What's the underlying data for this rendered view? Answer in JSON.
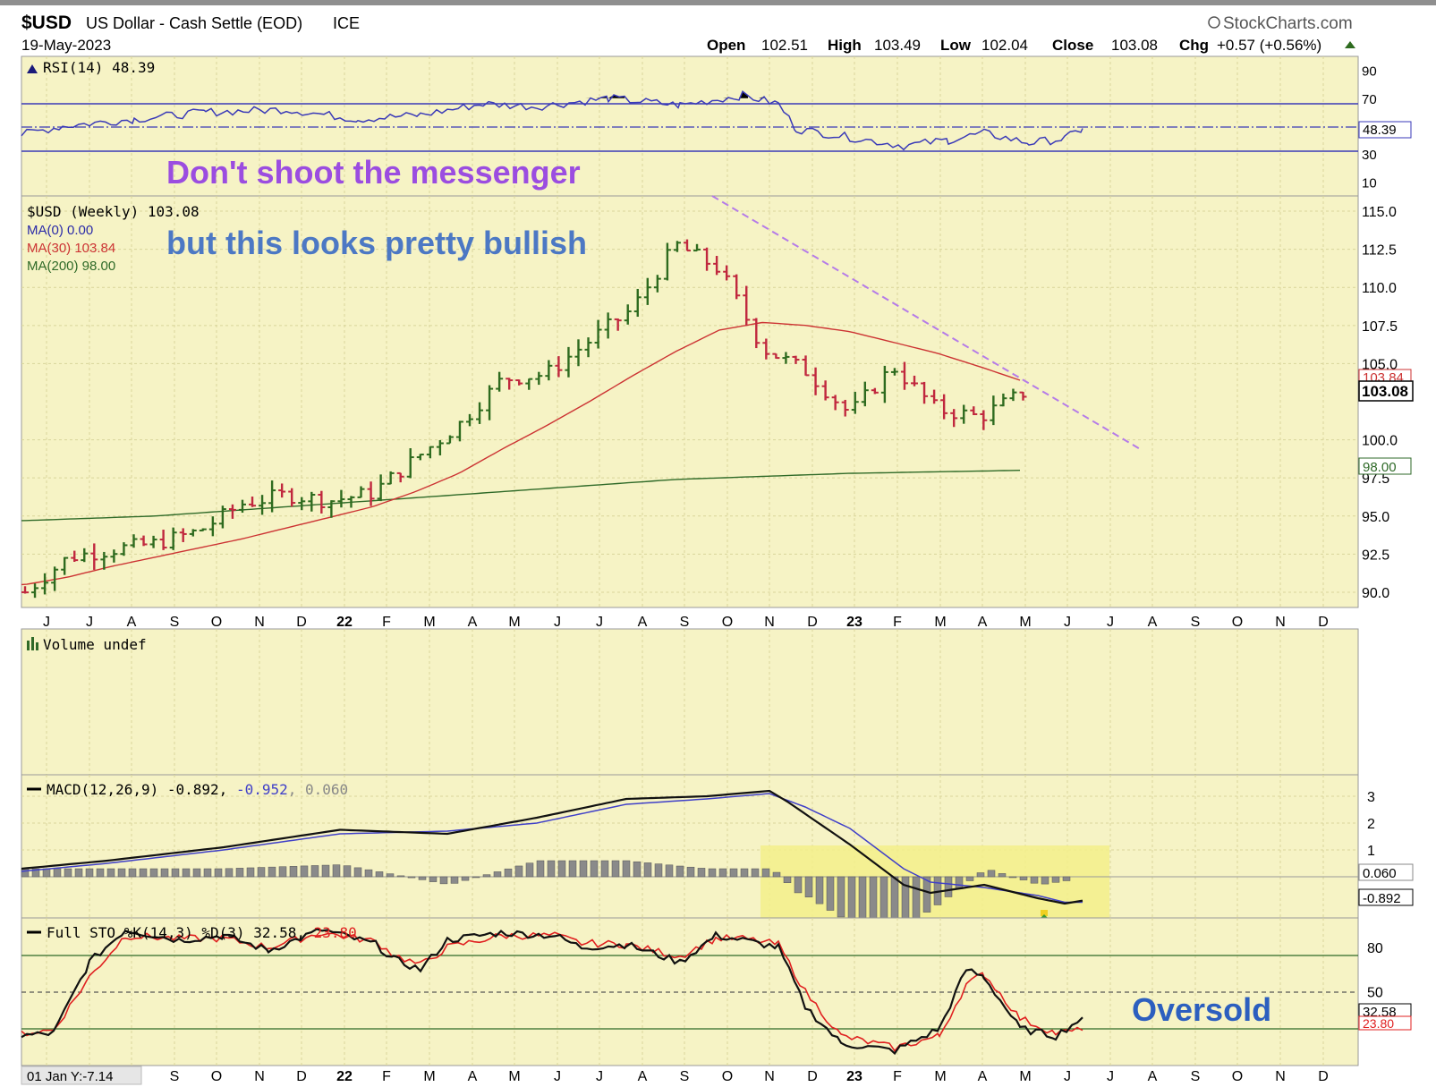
{
  "header": {
    "symbol": "$USD",
    "description": "US Dollar - Cash Settle (EOD)",
    "exchange": "ICE",
    "date": "19-May-2023",
    "brand": "StockCharts.com",
    "open_label": "Open",
    "open": "102.51",
    "high_label": "High",
    "high": "103.49",
    "low_label": "Low",
    "low": "102.04",
    "close_label": "Close",
    "close": "103.08",
    "chg_label": "Chg",
    "chg": "+0.57 (+0.56%)"
  },
  "annotations": {
    "line1": "Don't shoot the messenger",
    "line2": "but this looks pretty bullish",
    "oversold": "Oversold"
  },
  "colors": {
    "panel_bg": "#f6f3c5",
    "grid": "#d9d59a",
    "up_bar": "#2e6b1f",
    "down_bar": "#c0283e",
    "ma30": "#cc3333",
    "ma200": "#2f6a28",
    "rsi_line": "#3a3ab8",
    "macd_line": "#111111",
    "signal_line": "#4040c8",
    "histogram": "#8a8a8a",
    "sto_k": "#111111",
    "sto_d": "#e02020",
    "trendline": "#b57be8",
    "annot_purple": "#9b4de0",
    "annot_blue": "#4c78c4",
    "oversold": "#2c5fbf",
    "highlight": "#f3ef8a",
    "arrow": "#3d9a2f"
  },
  "rsi_panel": {
    "label": "RSI(14) 48.39",
    "value_tag": "48.39",
    "axis_ticks": [
      "90",
      "70",
      "30",
      "10"
    ]
  },
  "price_panel": {
    "label": "$USD (Weekly) 103.08",
    "legend": [
      {
        "text": "MA(0) 0.00",
        "color": "#2a2aa8"
      },
      {
        "text": "MA(30) 103.84",
        "color": "#cc3333"
      },
      {
        "text": "MA(200) 98.00",
        "color": "#2f6a28"
      }
    ],
    "axis_ticks": [
      "115.0",
      "112.5",
      "110.0",
      "107.5",
      "105.0",
      "100.0",
      "97.5",
      "95.0",
      "92.5",
      "90.0"
    ],
    "tag_ma30": "103.84",
    "tag_close": "103.08",
    "tag_ma200": "98.00"
  },
  "x_axis": {
    "labels": [
      "J",
      "J",
      "A",
      "S",
      "O",
      "N",
      "D",
      "22",
      "F",
      "M",
      "A",
      "M",
      "J",
      "J",
      "A",
      "S",
      "O",
      "N",
      "D",
      "23",
      "F",
      "M",
      "A",
      "M",
      "J",
      "J",
      "A",
      "S",
      "O",
      "N",
      "D"
    ],
    "bottom_labels": [
      "S",
      "O",
      "N",
      "D",
      "22",
      "F",
      "M",
      "A",
      "M",
      "J",
      "J",
      "A",
      "S",
      "O",
      "N",
      "D",
      "23",
      "F",
      "M",
      "A",
      "M",
      "J",
      "J",
      "A",
      "S",
      "O",
      "N",
      "D"
    ],
    "scroll_note": "01 Jan Y:-7.14"
  },
  "volume_panel": {
    "label": "Volume undef"
  },
  "macd_panel": {
    "label": "MACD(12,26,9)",
    "macd": "-0.892",
    "signal": "-0.952",
    "hist": "0.060",
    "axis_ticks": [
      "3",
      "2",
      "1"
    ],
    "tag_hist": "0.060",
    "tag_macd": "-0.892"
  },
  "sto_panel": {
    "label": "Full STO %K(14,3) %D(3)",
    "k": "32.58",
    "d": "23.80",
    "axis_ticks": [
      "80",
      "50"
    ],
    "tag_k": "32.58",
    "tag_d": "23.80"
  },
  "chart_data": {
    "type": "line",
    "title": "$USD US Dollar - Cash Settle (EOD) ICE",
    "x_label": "",
    "y_label": "",
    "x": [
      "2021-06",
      "2021-07",
      "2021-08",
      "2021-09",
      "2021-10",
      "2021-11",
      "2021-12",
      "2022-01",
      "2022-02",
      "2022-03",
      "2022-04",
      "2022-05",
      "2022-06",
      "2022-07",
      "2022-08",
      "2022-09",
      "2022-10",
      "2022-11",
      "2022-12",
      "2023-01",
      "2023-02",
      "2023-03",
      "2023-04",
      "2023-05"
    ],
    "ylim": [
      89.0,
      116.0
    ],
    "series": [
      {
        "name": "$USD (Weekly)",
        "values": [
          90.0,
          92.3,
          92.8,
          93.2,
          94.0,
          95.8,
          96.4,
          96.0,
          96.5,
          98.8,
          101.0,
          104.0,
          104.3,
          106.5,
          108.6,
          112.8,
          111.2,
          106.0,
          104.5,
          101.7,
          104.8,
          102.0,
          101.5,
          103.08
        ]
      },
      {
        "name": "MA(30)",
        "values": [
          90.5,
          91.0,
          91.7,
          92.3,
          92.9,
          93.5,
          94.2,
          94.9,
          95.6,
          96.6,
          97.8,
          99.4,
          100.9,
          102.5,
          104.2,
          105.8,
          107.2,
          107.7,
          107.5,
          107.1,
          106.4,
          105.7,
          104.8,
          103.84
        ]
      },
      {
        "name": "MA(200)",
        "values": [
          94.7,
          94.8,
          94.9,
          95.0,
          95.2,
          95.4,
          95.6,
          95.8,
          96.0,
          96.2,
          96.4,
          96.6,
          96.8,
          97.0,
          97.2,
          97.4,
          97.5,
          97.6,
          97.7,
          97.8,
          97.85,
          97.9,
          97.95,
          98.0
        ]
      }
    ]
  }
}
